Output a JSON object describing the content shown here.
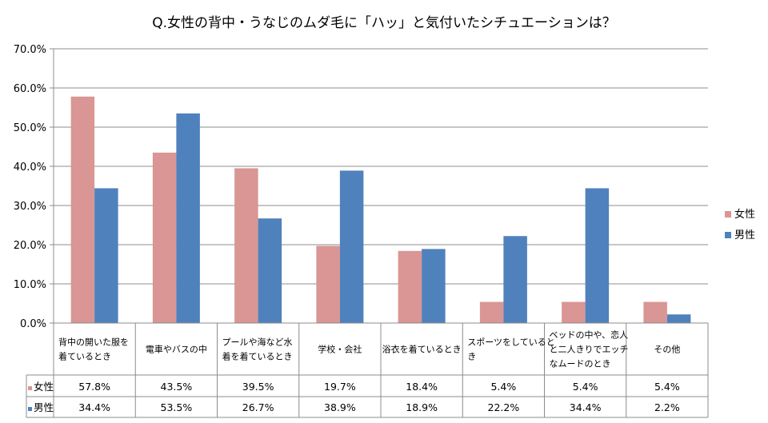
{
  "chart_data": {
    "type": "bar",
    "title": "Q.女性の背中・うなじのムダ毛に「ハッ」と気付いたシチュエーションは？",
    "categories": [
      [
        "背中の開いた服を",
        "着ているとき"
      ],
      [
        "電車やバスの中"
      ],
      [
        "プールや海など水",
        "着を着ているとき"
      ],
      [
        "学校・会社"
      ],
      [
        "浴衣を着ているとき"
      ],
      [
        "スポーツをしていると",
        "き"
      ],
      [
        "ベッドの中や、恋人",
        "と二人きりでエッチ",
        "なムードのとき"
      ],
      [
        "その他"
      ]
    ],
    "series": [
      {
        "name": "女性",
        "color": "#D99694",
        "values": [
          57.8,
          43.5,
          39.5,
          19.7,
          18.4,
          5.4,
          5.4,
          5.4
        ],
        "labels": [
          "57.8%",
          "43.5%",
          "39.5%",
          "19.7%",
          "18.4%",
          "5.4%",
          "5.4%",
          "5.4%"
        ]
      },
      {
        "name": "男性",
        "color": "#4F81BD",
        "values": [
          34.4,
          53.5,
          26.7,
          38.9,
          18.9,
          22.2,
          34.4,
          2.2
        ],
        "labels": [
          "34.4%",
          "53.5%",
          "26.7%",
          "38.9%",
          "18.9%",
          "22.2%",
          "34.4%",
          "2.2%"
        ]
      }
    ],
    "yticks": [
      "0.0%",
      "10.0%",
      "20.0%",
      "30.0%",
      "40.0%",
      "50.0%",
      "60.0%",
      "70.0%"
    ],
    "ylim": [
      0,
      70
    ],
    "grid": true,
    "legend": "right",
    "data_table": true
  }
}
